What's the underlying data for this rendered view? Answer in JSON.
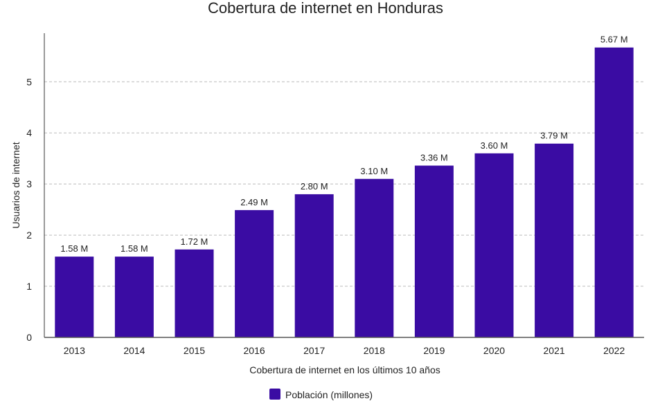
{
  "chart_data": {
    "type": "bar",
    "title": "Cobertura de internet en Honduras",
    "xlabel": "Cobertura de internet en los últimos 10 años",
    "ylabel": "Usuarios de internet",
    "categories": [
      "2013",
      "2014",
      "2015",
      "2016",
      "2017",
      "2018",
      "2019",
      "2020",
      "2021",
      "2022"
    ],
    "series": [
      {
        "name": "Población (millones)",
        "values": [
          1.58,
          1.58,
          1.72,
          2.49,
          2.8,
          3.1,
          3.36,
          3.6,
          3.79,
          5.67
        ],
        "color": "#3a0ca3"
      }
    ],
    "data_labels": [
      "1.58 M",
      "1.58 M",
      "1.72 M",
      "2.49 M",
      "2.80 M",
      "3.10 M",
      "3.36 M",
      "3.60 M",
      "3.79 M",
      "5.67 M"
    ],
    "yticks": [
      "0",
      "1",
      "2",
      "3",
      "4",
      "5"
    ],
    "ylim": [
      0,
      5.95
    ],
    "grid": "horizontal dashed",
    "legend_position": "bottom-center"
  }
}
